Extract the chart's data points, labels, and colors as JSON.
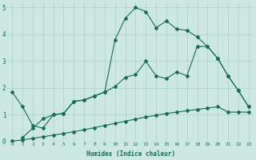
{
  "xlabel": "Humidex (Indice chaleur)",
  "background_color": "#cce8e0",
  "grid_color": "#aacfc8",
  "line_color": "#1a6b5a",
  "xlim": [
    -0.5,
    23.5
  ],
  "ylim": [
    0,
    5.2
  ],
  "xticks": [
    0,
    1,
    2,
    3,
    4,
    5,
    6,
    7,
    8,
    9,
    10,
    11,
    12,
    13,
    14,
    15,
    16,
    17,
    18,
    19,
    20,
    21,
    22,
    23
  ],
  "yticks": [
    0,
    1,
    2,
    3,
    4,
    5
  ],
  "line1_x": [
    0,
    1,
    2,
    3,
    4,
    5,
    6,
    7,
    8,
    9,
    10,
    11,
    12,
    13,
    14,
    15,
    16,
    17,
    18,
    19,
    20,
    21,
    22,
    23
  ],
  "line1_y": [
    0.02,
    0.06,
    0.12,
    0.18,
    0.24,
    0.3,
    0.37,
    0.44,
    0.52,
    0.6,
    0.68,
    0.76,
    0.84,
    0.92,
    0.98,
    1.05,
    1.1,
    1.15,
    1.2,
    1.25,
    1.3,
    1.1,
    1.1,
    1.1
  ],
  "line2_x": [
    1,
    2,
    3,
    4,
    5,
    6,
    7,
    8,
    9,
    10,
    11,
    12,
    13,
    14,
    15,
    16,
    17,
    18,
    19,
    20,
    21,
    22,
    23
  ],
  "line2_y": [
    0.15,
    0.5,
    0.85,
    1.0,
    1.05,
    1.5,
    1.55,
    1.7,
    1.85,
    2.05,
    2.4,
    2.5,
    3.0,
    2.45,
    2.35,
    2.6,
    2.45,
    3.55,
    3.55,
    3.1,
    2.45,
    1.9,
    1.3
  ],
  "line3_x": [
    0,
    1,
    2,
    3,
    4,
    5,
    6,
    7,
    8,
    9,
    10,
    11,
    12,
    13,
    14,
    15,
    16,
    17,
    18,
    19,
    20,
    21,
    22,
    23
  ],
  "line3_y": [
    1.85,
    1.3,
    0.6,
    0.5,
    1.0,
    1.05,
    1.5,
    1.55,
    1.7,
    1.85,
    3.8,
    4.6,
    5.0,
    4.85,
    4.25,
    4.5,
    4.2,
    4.15,
    3.9,
    3.55,
    3.1,
    2.45,
    1.9,
    1.3
  ]
}
